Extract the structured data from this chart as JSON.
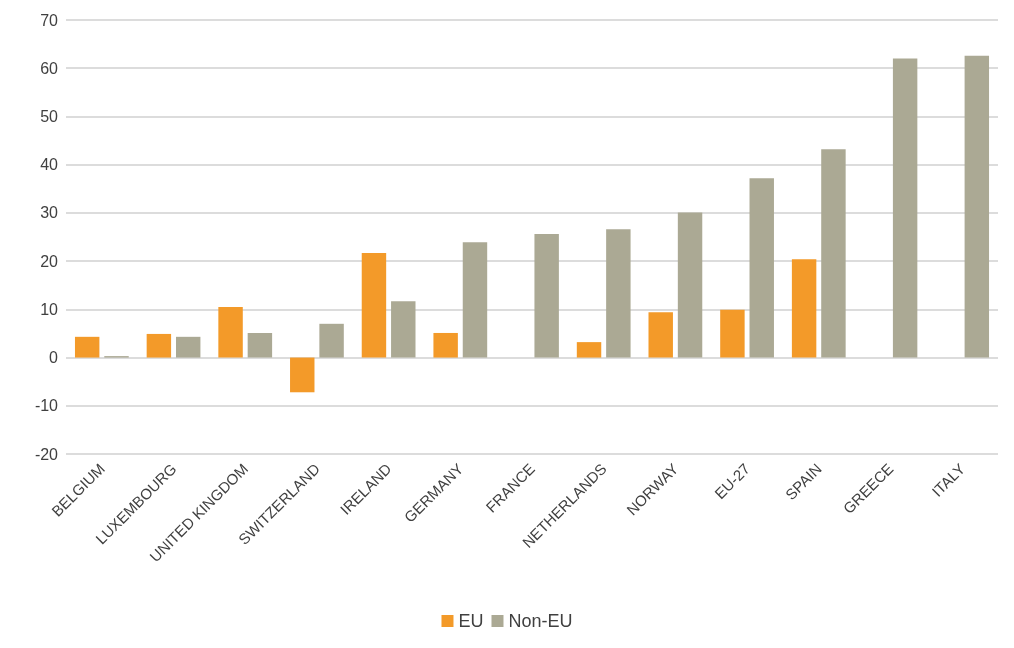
{
  "chart_data": {
    "type": "bar",
    "categories": [
      "BELGIUM",
      "LUXEMBOURG",
      "UNITED KINGDOM",
      "SWITZERLAND",
      "IRELAND",
      "GERMANY",
      "FRANCE",
      "NETHERLANDS",
      "NORWAY",
      "EU-27",
      "SPAIN",
      "GREECE",
      "ITALY"
    ],
    "series": [
      {
        "name": "EU",
        "color": "#f39a29",
        "values": [
          4.3,
          4.9,
          10.5,
          -7.2,
          21.7,
          5.1,
          null,
          3.2,
          9.4,
          9.9,
          20.4,
          null,
          null
        ]
      },
      {
        "name": "Non-EU",
        "color": "#aba994",
        "values": [
          0.3,
          4.3,
          5.1,
          7.0,
          11.7,
          23.9,
          25.6,
          26.6,
          30.1,
          37.2,
          43.2,
          62.0,
          62.6
        ]
      }
    ],
    "ylim": [
      -20,
      70
    ],
    "yticks": [
      -20,
      -10,
      0,
      10,
      20,
      30,
      40,
      50,
      60,
      70
    ],
    "grid": "y",
    "legend": "bottom"
  }
}
